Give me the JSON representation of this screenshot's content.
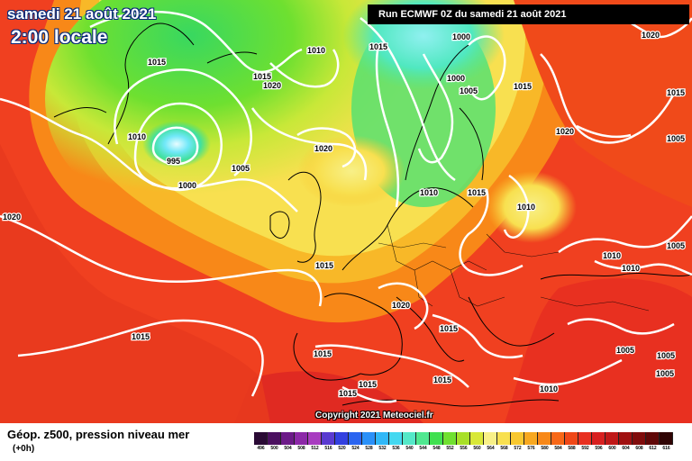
{
  "header": {
    "date": "samedi 21 août 2021",
    "time": "2:00 locale",
    "run": "Run ECMWF 0Z du samedi 21 août 2021"
  },
  "copyright": "Copyright 2021 Meteociel.fr",
  "legend": {
    "title": "Géop. z500, pression niveau mer",
    "subtitle": "(+0h)",
    "values": [
      "496",
      "500",
      "504",
      "508",
      "512",
      "516",
      "520",
      "524",
      "528",
      "532",
      "536",
      "540",
      "544",
      "548",
      "552",
      "556",
      "560",
      "564",
      "568",
      "572",
      "576",
      "580",
      "584",
      "588",
      "592",
      "596",
      "600",
      "604",
      "608",
      "612",
      "616"
    ],
    "colors": [
      "#2a0a35",
      "#4b1060",
      "#6c1a88",
      "#8c28a8",
      "#a83cc0",
      "#5a3ad0",
      "#3340e0",
      "#2a64f0",
      "#2a90f8",
      "#30b8f8",
      "#44d8f0",
      "#55e8c8",
      "#50e890",
      "#40e050",
      "#70e030",
      "#a8e028",
      "#d8e838",
      "#f8f088",
      "#f8e050",
      "#f8c830",
      "#f8a820",
      "#f88818",
      "#f86818",
      "#f04818",
      "#e83020",
      "#d82020",
      "#c01818",
      "#a01010",
      "#800c0c",
      "#600808",
      "#300404"
    ]
  },
  "map": {
    "pressure_labels": [
      {
        "text": "1015"
      },
      {
        "text": "1010"
      },
      {
        "text": "1015"
      },
      {
        "text": "1020"
      },
      {
        "text": "1015"
      },
      {
        "text": "1000"
      },
      {
        "text": "1000"
      },
      {
        "text": "1005"
      },
      {
        "text": "1015"
      },
      {
        "text": "1020"
      },
      {
        "text": "1015"
      },
      {
        "text": "1010"
      },
      {
        "text": "995"
      },
      {
        "text": "1000"
      },
      {
        "text": "1005"
      },
      {
        "text": "1020"
      },
      {
        "text": "1005"
      },
      {
        "text": "1020"
      },
      {
        "text": "1010"
      },
      {
        "text": "1015"
      },
      {
        "text": "1010"
      },
      {
        "text": "1005"
      },
      {
        "text": "1015"
      },
      {
        "text": "1010"
      },
      {
        "text": "1010"
      },
      {
        "text": "1020"
      },
      {
        "text": "1015"
      },
      {
        "text": "1020"
      },
      {
        "text": "1005"
      },
      {
        "text": "1015"
      },
      {
        "text": "1005"
      },
      {
        "text": "1005"
      },
      {
        "text": "1015"
      },
      {
        "text": "1015"
      },
      {
        "text": "1010"
      },
      {
        "text": "1015"
      }
    ]
  }
}
